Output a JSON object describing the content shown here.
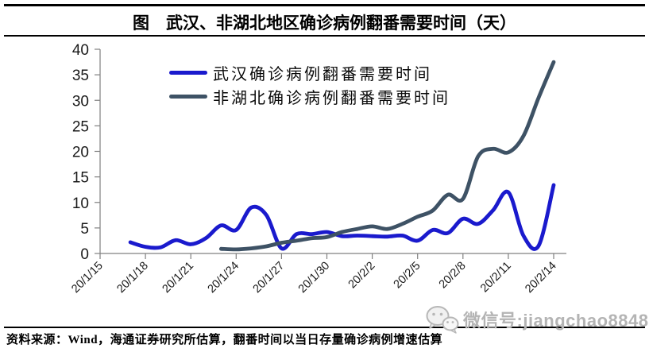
{
  "header": {
    "title": "图　武汉、非湖北地区确诊病例翻番需要时间（天）"
  },
  "footer": {
    "source": "资料来源：Wind，海通证券研究所估算，翻番时间以当日存量确诊病例增速估算"
  },
  "watermark": {
    "icon": "wechat-icon",
    "label": "微信号:jiangchao8848",
    "color": "#b4b4b4"
  },
  "chart_data": {
    "type": "line",
    "title": "武汉、非湖北地区确诊病例翻番需要时间（天）",
    "xlabel": "",
    "ylabel": "",
    "ylim": [
      0,
      40
    ],
    "ytick_step": 5,
    "ytick_labels": [
      "0",
      "5",
      "10",
      "15",
      "20",
      "25",
      "30",
      "35",
      "40"
    ],
    "x_tick_labels": [
      "20/1/15",
      "20/1/18",
      "20/1/21",
      "20/1/24",
      "20/1/27",
      "20/1/30",
      "20/2/2",
      "20/2/5",
      "20/2/8",
      "20/2/11",
      "20/2/14"
    ],
    "x_tick_interval_days": 3,
    "x_total_days": 30,
    "grid": false,
    "legend_position": "top-left-inside",
    "axis_color": "#808080",
    "series": [
      {
        "name": "武汉确诊病例翻番需要时间",
        "color": "#1a1acd",
        "start_date": "20/1/17",
        "start_day_offset": 2,
        "dates": [
          "20/1/17",
          "20/1/18",
          "20/1/19",
          "20/1/20",
          "20/1/21",
          "20/1/22",
          "20/1/23",
          "20/1/24",
          "20/1/25",
          "20/1/26",
          "20/1/27",
          "20/1/28",
          "20/1/29",
          "20/1/30",
          "20/1/31",
          "20/2/1",
          "20/2/2",
          "20/2/3",
          "20/2/4",
          "20/2/5",
          "20/2/6",
          "20/2/7",
          "20/2/8",
          "20/2/9",
          "20/2/10",
          "20/2/11",
          "20/2/12",
          "20/2/13",
          "20/2/14"
        ],
        "values": [
          2.2,
          1.3,
          1.2,
          2.6,
          1.8,
          3.0,
          5.5,
          4.6,
          9.0,
          7.5,
          1.0,
          3.8,
          3.8,
          4.2,
          3.4,
          3.5,
          3.4,
          3.3,
          3.5,
          2.5,
          4.6,
          4.0,
          6.8,
          5.8,
          8.5,
          12.0,
          3.5,
          1.5,
          13.4
        ]
      },
      {
        "name": "非湖北确诊病例翻番需要时间",
        "color": "#3e5265",
        "start_date": "20/1/23",
        "start_day_offset": 8,
        "dates": [
          "20/1/23",
          "20/1/24",
          "20/1/25",
          "20/1/26",
          "20/1/27",
          "20/1/28",
          "20/1/29",
          "20/1/30",
          "20/1/31",
          "20/2/1",
          "20/2/2",
          "20/2/3",
          "20/2/4",
          "20/2/5",
          "20/2/6",
          "20/2/7",
          "20/2/8",
          "20/2/9",
          "20/2/10",
          "20/2/11",
          "20/2/12",
          "20/2/13",
          "20/2/14"
        ],
        "values": [
          0.9,
          0.8,
          1.0,
          1.4,
          2.1,
          2.5,
          3.0,
          3.2,
          4.2,
          4.8,
          5.3,
          4.8,
          5.8,
          7.2,
          8.4,
          11.5,
          10.7,
          19.0,
          20.5,
          19.8,
          23.0,
          30.5,
          37.5
        ]
      }
    ]
  }
}
